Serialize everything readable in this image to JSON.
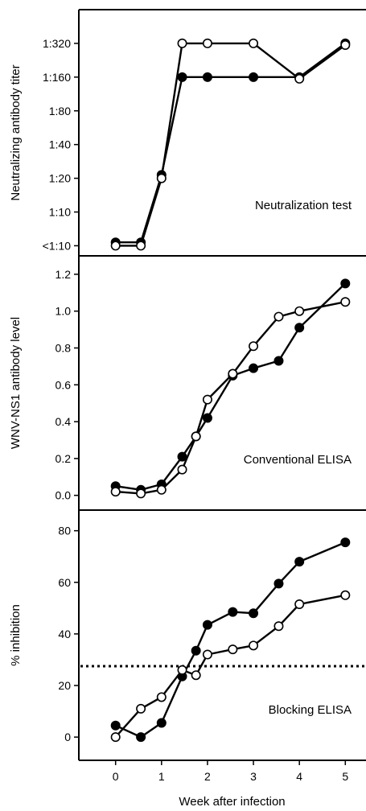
{
  "chart_data": [
    {
      "type": "line",
      "annotation": "Neutralization test",
      "ylabel": "Neutralizing antibody titer",
      "x_ticks": [],
      "y_ticks": [
        "<1:10",
        "1:10",
        "1:20",
        "1:40",
        "1:80",
        "1:160",
        "1:320"
      ],
      "ylim": [
        -0.3,
        7.0
      ],
      "xlim": [
        -0.8,
        5.45
      ],
      "series": [
        {
          "marker": "filled",
          "x": [
            0,
            0.55,
            1,
            1.45,
            2,
            3,
            4,
            5
          ],
          "y": [
            0.1,
            0.1,
            2.1,
            5.0,
            5.0,
            5.0,
            5.0,
            6.0
          ]
        },
        {
          "marker": "open",
          "x": [
            0,
            0.55,
            1,
            1.45,
            2,
            3,
            4,
            5
          ],
          "y": [
            0.0,
            0.0,
            2.0,
            6.0,
            6.0,
            6.0,
            4.95,
            5.95
          ]
        }
      ]
    },
    {
      "type": "line",
      "annotation": "Conventional ELISA",
      "ylabel": "WNV-NS1 antibody level",
      "x_ticks": [],
      "y_ticks": [
        "0.0",
        "0.2",
        "0.4",
        "0.6",
        "0.8",
        "1.0",
        "1.2"
      ],
      "y_tick_values": [
        0,
        0.2,
        0.4,
        0.6,
        0.8,
        1.0,
        1.2
      ],
      "ylim": [
        -0.08,
        1.3
      ],
      "xlim": [
        -0.8,
        5.45
      ],
      "series": [
        {
          "marker": "filled",
          "x": [
            0,
            0.55,
            1,
            1.45,
            1.75,
            2,
            2.55,
            3,
            3.55,
            4,
            5
          ],
          "y": [
            0.05,
            0.03,
            0.06,
            0.21,
            0.32,
            0.42,
            0.65,
            0.69,
            0.73,
            0.91,
            1.15
          ]
        },
        {
          "marker": "open",
          "x": [
            0,
            0.55,
            1,
            1.45,
            1.75,
            2,
            2.55,
            3,
            3.55,
            4,
            5
          ],
          "y": [
            0.02,
            0.01,
            0.03,
            0.14,
            0.32,
            0.52,
            0.66,
            0.81,
            0.97,
            1.0,
            1.05
          ]
        }
      ]
    },
    {
      "type": "line",
      "annotation": "Blocking ELISA",
      "ylabel": "% inhibition",
      "xlabel": "Week after infection",
      "x_ticks": [
        "0",
        "1",
        "2",
        "3",
        "4",
        "5"
      ],
      "x_tick_values": [
        0,
        1,
        2,
        3,
        4,
        5
      ],
      "y_ticks": [
        "0",
        "20",
        "40",
        "60",
        "80"
      ],
      "y_tick_values": [
        0,
        20,
        40,
        60,
        80
      ],
      "ylim": [
        -9,
        88
      ],
      "xlim": [
        -0.8,
        5.45
      ],
      "cutoff": 27.5,
      "series": [
        {
          "marker": "filled",
          "x": [
            0,
            0.55,
            1,
            1.45,
            1.75,
            2,
            2.55,
            3,
            3.55,
            4,
            5
          ],
          "y": [
            4.5,
            0,
            5.5,
            23.5,
            33.5,
            43.5,
            48.5,
            48,
            59.5,
            68,
            75.5
          ]
        },
        {
          "marker": "open",
          "x": [
            0,
            0.55,
            1,
            1.45,
            1.75,
            2,
            2.55,
            3,
            3.55,
            4,
            5
          ],
          "y": [
            0,
            11,
            15.5,
            26,
            24,
            32,
            34,
            35.5,
            43,
            51.5,
            55
          ]
        }
      ]
    }
  ]
}
